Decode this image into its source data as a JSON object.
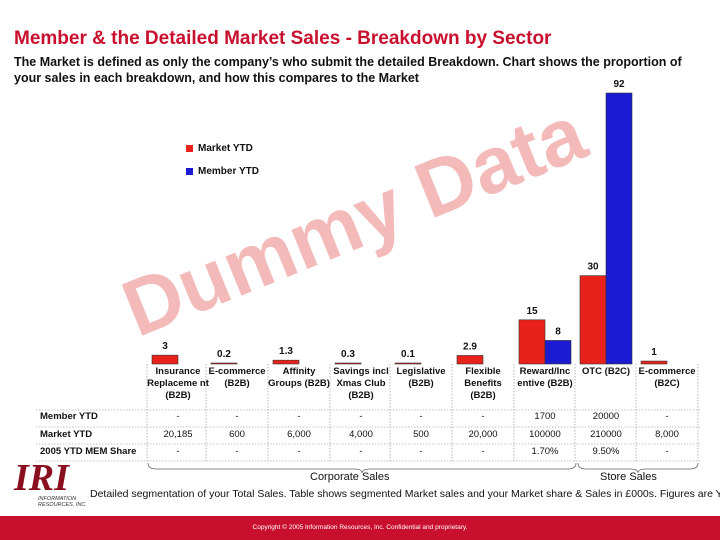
{
  "title": "Member & the Detailed Market Sales - Breakdown by Sector",
  "subtitle": "The Market is defined as only the company’s who submit the detailed Breakdown. Chart shows the proportion of your sales in each breakdown, and how this compares to the Market",
  "watermark": "Dummy Data",
  "chart_data": {
    "type": "bar",
    "categories": [
      "Insurance Replaceme nt (B2B)",
      "E-commerce (B2B)",
      "Affinity Groups (B2B)",
      "Savings incl Xmas Club (B2B)",
      "Legislative (B2B)",
      "Flexible Benefits (B2B)",
      "Reward/Inc entive (B2B)",
      "OTC (B2C)",
      "E-commerce (B2C)"
    ],
    "series": [
      {
        "name": "Market YTD",
        "color": "#e8211b",
        "values": [
          3,
          0.2,
          1.3,
          0.3,
          0.1,
          2.9,
          15,
          30,
          1
        ],
        "labels": [
          "3",
          "0.2",
          "1.3",
          "0.3",
          "0.1",
          "2.9",
          "15",
          "30",
          "1"
        ]
      },
      {
        "name": "Member YTD",
        "color": "#1a1ad1",
        "values": [
          0,
          0,
          0,
          0,
          0,
          0,
          8,
          92,
          0
        ],
        "labels": [
          "",
          "",
          "",
          "",
          "",
          "",
          "8",
          "92",
          ""
        ]
      }
    ],
    "ylim": [
      0,
      92
    ]
  },
  "table": {
    "rows": [
      {
        "label": "Member YTD",
        "values": [
          "-",
          "-",
          "-",
          "-",
          "-",
          "-",
          "1700",
          "20000",
          "-"
        ]
      },
      {
        "label": "Market YTD",
        "values": [
          "20,185",
          "600",
          "6,000",
          "4,000",
          "500",
          "20,000",
          "100000",
          "210000",
          "8,000"
        ]
      },
      {
        "label": "2005 YTD MEM Share",
        "values": [
          "-",
          "-",
          "-",
          "-",
          "-",
          "-",
          "1.70%",
          "9.50%",
          "-"
        ]
      }
    ]
  },
  "groups": {
    "corporate": "Corporate Sales",
    "store": "Store Sales"
  },
  "footnote": "Detailed segmentation of your Total Sales. Table shows segmented Market sales and your Market share & Sales in £000s. Figures are YTD.",
  "logo": {
    "text": "IRI",
    "subtext": "INFORMATION RESOURCES, INC."
  },
  "copyright": "Copyright © 2005 Information Resources, Inc. Confidential and proprietary."
}
